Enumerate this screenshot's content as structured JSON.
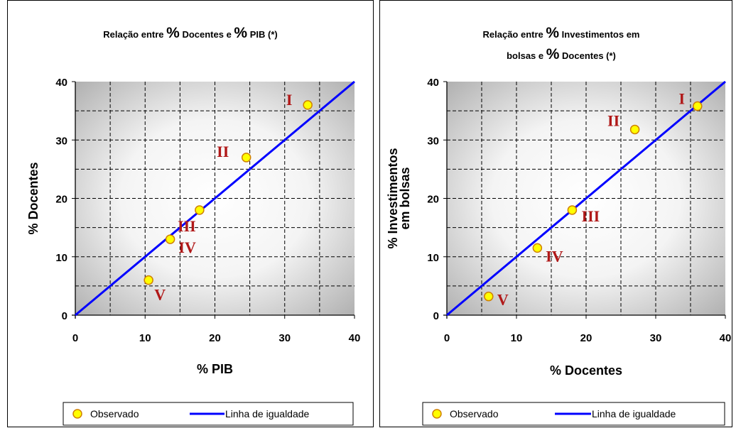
{
  "chart_data": [
    {
      "type": "scatter",
      "title": "Relação entre % Docentes e % PIB  (*)",
      "xlabel": "% PIB",
      "ylabel": "% Docentes",
      "xlim": [
        0,
        40
      ],
      "ylim": [
        0,
        40
      ],
      "xticks": [
        "0",
        "10",
        "20",
        "30",
        "40"
      ],
      "yticks": [
        "0",
        "10",
        "20",
        "30",
        "40"
      ],
      "grid": true,
      "series": [
        {
          "name": "Observado",
          "color": "#ffff00",
          "points": [
            {
              "label": "I",
              "x": 33.3,
              "y": 36.0
            },
            {
              "label": "II",
              "x": 24.5,
              "y": 27.0
            },
            {
              "label": "III",
              "x": 17.8,
              "y": 18.0
            },
            {
              "label": "IV",
              "x": 13.6,
              "y": 13.0
            },
            {
              "label": "V",
              "x": 10.5,
              "y": 6.0
            }
          ]
        },
        {
          "name": "Linha de igualdade",
          "color": "#0000ff",
          "line": [
            [
              0,
              0
            ],
            [
              40,
              40
            ]
          ]
        }
      ],
      "legend": "bottom"
    },
    {
      "type": "scatter",
      "title": "Relação entre % Investimentos em bolsas e % Docentes  (*)",
      "xlabel": "% Docentes",
      "ylabel": "% Investimentos em bolsas",
      "xlim": [
        0,
        40
      ],
      "ylim": [
        0,
        40
      ],
      "xticks": [
        "0",
        "10",
        "20",
        "30",
        "40"
      ],
      "yticks": [
        "0",
        "10",
        "20",
        "30",
        "40"
      ],
      "grid": true,
      "series": [
        {
          "name": "Observado",
          "color": "#ffff00",
          "points": [
            {
              "label": "I",
              "x": 36.0,
              "y": 35.8
            },
            {
              "label": "II",
              "x": 27.0,
              "y": 31.8
            },
            {
              "label": "III",
              "x": 18.0,
              "y": 18.0
            },
            {
              "label": "IV",
              "x": 13.0,
              "y": 11.5
            },
            {
              "label": "V",
              "x": 6.0,
              "y": 3.2
            }
          ]
        },
        {
          "name": "Linha de igualdade",
          "color": "#0000ff",
          "line": [
            [
              0,
              0
            ],
            [
              40,
              40
            ]
          ]
        }
      ],
      "legend": "bottom"
    }
  ]
}
